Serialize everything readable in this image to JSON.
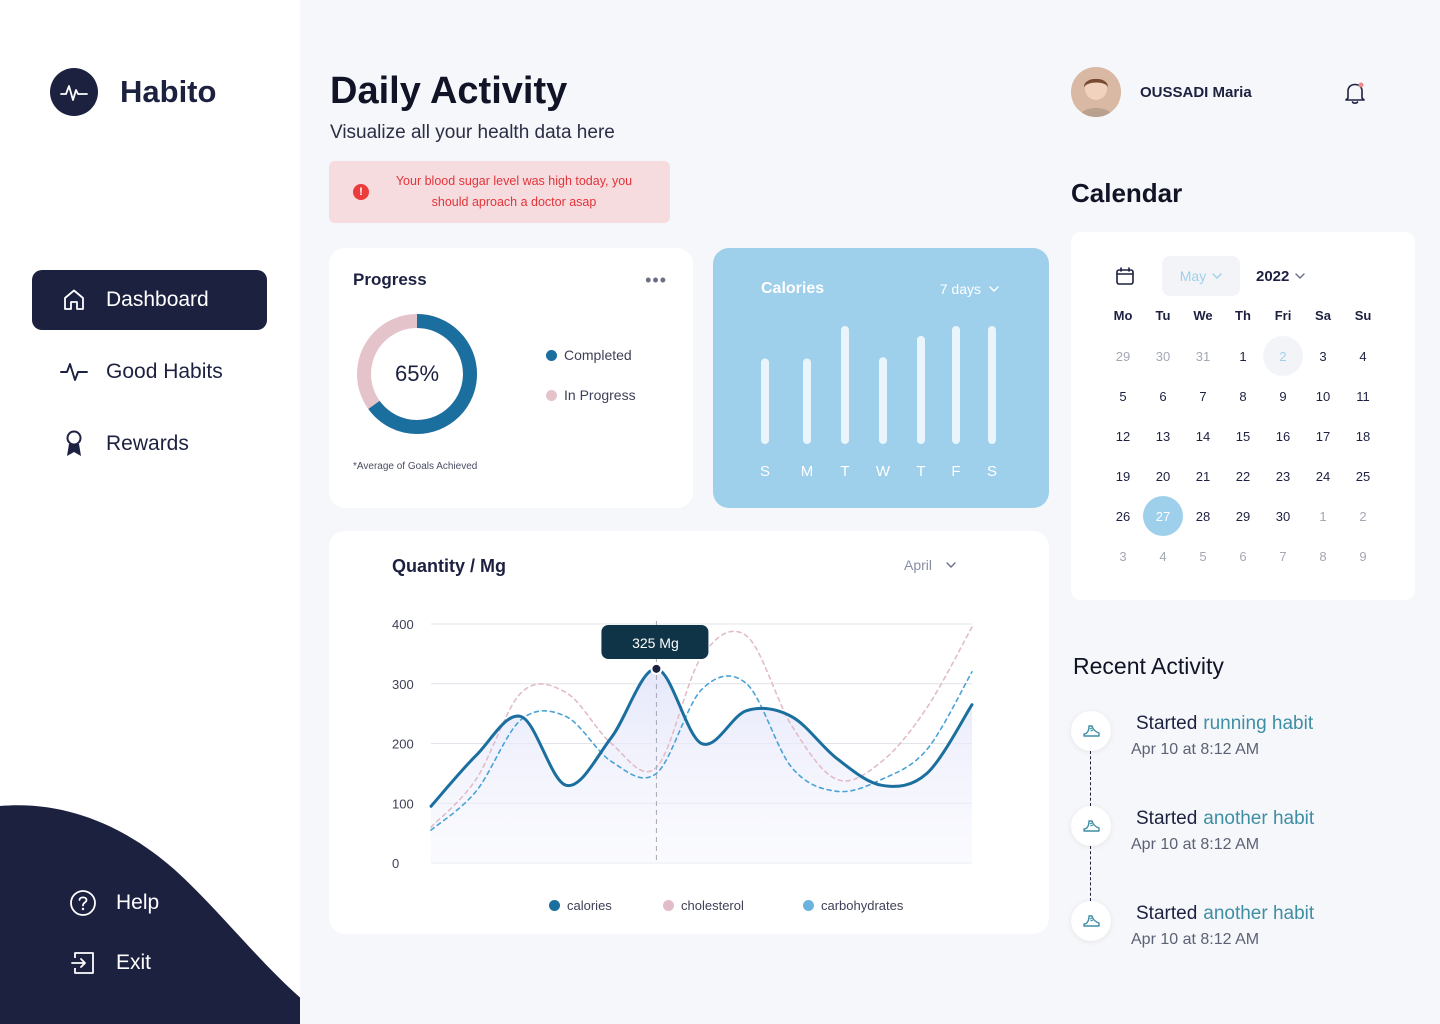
{
  "brand": {
    "name": "Habito"
  },
  "nav": {
    "items": [
      {
        "label": "Dashboard",
        "icon": "home-icon",
        "active": true
      },
      {
        "label": "Good Habits",
        "icon": "activity-icon",
        "active": false
      },
      {
        "label": "Rewards",
        "icon": "award-icon",
        "active": false
      }
    ],
    "bottom": [
      {
        "label": "Help",
        "icon": "help-icon"
      },
      {
        "label": "Exit",
        "icon": "exit-icon"
      }
    ]
  },
  "header": {
    "title": "Daily Activity",
    "subtitle": "Visualize all your health data here",
    "alert": "Your blood sugar level was high today, you should aproach a doctor asap"
  },
  "progress": {
    "title": "Progress",
    "percent_label": "65%",
    "completed_fraction": 0.65,
    "legend": [
      "Completed",
      "In Progress"
    ],
    "note": "*Average  of Goals  Achieved"
  },
  "calories": {
    "title": "Calories",
    "range": "7 days",
    "days": [
      "S",
      "M",
      "T",
      "W",
      "T",
      "F",
      "S"
    ],
    "levels": [
      0.62,
      0.62,
      0.88,
      0.63,
      0.8,
      0.88,
      0.88
    ]
  },
  "quantity": {
    "title": "Quantity / Mg",
    "month": "April",
    "tooltip": "325 Mg"
  },
  "chart_data": {
    "type": "line",
    "title": "Quantity / Mg",
    "ylim": [
      0,
      400
    ],
    "yticks": [
      0,
      100,
      200,
      300,
      400
    ],
    "grid": true,
    "legend_position": "bottom",
    "x": [
      0,
      1,
      2,
      3,
      4,
      5,
      6,
      7,
      8,
      9,
      10,
      11,
      12
    ],
    "series": [
      {
        "name": "calories",
        "color": "#1b6f9f",
        "style": "solid",
        "values": [
          95,
          180,
          245,
          130,
          210,
          325,
          200,
          255,
          245,
          175,
          130,
          150,
          265
        ]
      },
      {
        "name": "cholesterol",
        "color": "#e2bcc8",
        "style": "dashed",
        "values": [
          60,
          140,
          285,
          285,
          200,
          160,
          345,
          380,
          230,
          140,
          170,
          260,
          395
        ]
      },
      {
        "name": "carbohydrates",
        "color": "#4aa3d6",
        "style": "dashed",
        "values": [
          55,
          120,
          240,
          245,
          170,
          150,
          290,
          300,
          160,
          120,
          140,
          190,
          320
        ]
      }
    ],
    "highlight": {
      "x": 5,
      "value": 325,
      "label": "325 Mg"
    }
  },
  "user": {
    "name": "OUSSADI Maria"
  },
  "calendar": {
    "title": "Calendar",
    "month": "May",
    "year": "2022",
    "weekdays": [
      "Mo",
      "Tu",
      "We",
      "Th",
      "Fri",
      "Sa",
      "Su"
    ],
    "days": [
      {
        "d": "29",
        "m": true
      },
      {
        "d": "30",
        "m": true
      },
      {
        "d": "31",
        "m": true
      },
      {
        "d": "1"
      },
      {
        "d": "2",
        "h": true
      },
      {
        "d": "3"
      },
      {
        "d": "4"
      },
      {
        "d": "5"
      },
      {
        "d": "6"
      },
      {
        "d": "7"
      },
      {
        "d": "8"
      },
      {
        "d": "9"
      },
      {
        "d": "10"
      },
      {
        "d": "11"
      },
      {
        "d": "12"
      },
      {
        "d": "13"
      },
      {
        "d": "14"
      },
      {
        "d": "15"
      },
      {
        "d": "16"
      },
      {
        "d": "17"
      },
      {
        "d": "18"
      },
      {
        "d": "19"
      },
      {
        "d": "20"
      },
      {
        "d": "21"
      },
      {
        "d": "22"
      },
      {
        "d": "23"
      },
      {
        "d": "24"
      },
      {
        "d": "25"
      },
      {
        "d": "26"
      },
      {
        "d": "27",
        "s": true
      },
      {
        "d": "28"
      },
      {
        "d": "29"
      },
      {
        "d": "30"
      },
      {
        "d": "1",
        "m": true
      },
      {
        "d": "2",
        "m": true
      },
      {
        "d": "3",
        "m": true
      },
      {
        "d": "4",
        "m": true
      },
      {
        "d": "5",
        "m": true
      },
      {
        "d": "6",
        "m": true
      },
      {
        "d": "7",
        "m": true
      },
      {
        "d": "8",
        "m": true
      },
      {
        "d": "9",
        "m": true
      }
    ]
  },
  "recent": {
    "title": "Recent Activity",
    "items": [
      {
        "prefix": "Started",
        "link": "running habit",
        "time": "Apr 10 at 8:12 AM"
      },
      {
        "prefix": "Started",
        "link": "another habit",
        "time": "Apr 10 at 8:12 AM"
      },
      {
        "prefix": "Started",
        "link": "another habit",
        "time": "Apr 10 at 8:12 AM"
      }
    ]
  }
}
